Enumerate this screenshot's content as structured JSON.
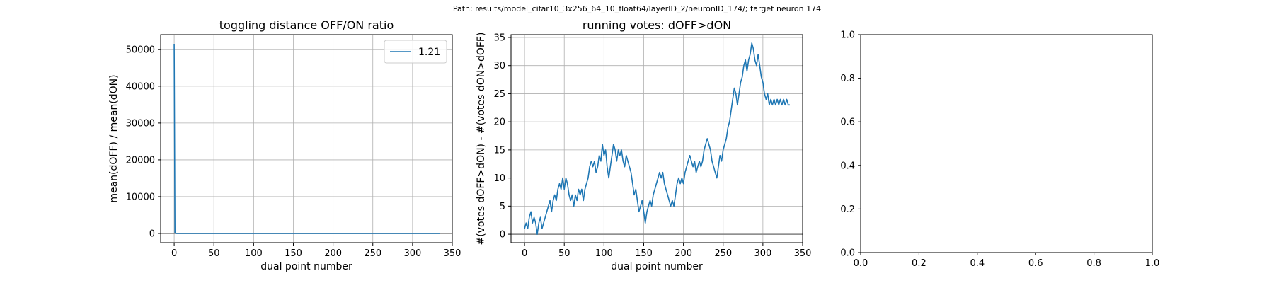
{
  "suptitle": "Path: results/model_cifar10_3x256_64_10_float64/layerID_2/neuronID_174/; target neuron 174",
  "colors": {
    "line": "#1f77b4",
    "zero_line": "#808080",
    "grid": "#b0b0b0"
  },
  "chart_data": [
    {
      "type": "line",
      "title": "toggling distance OFF/ON ratio",
      "xlabel": "dual point number",
      "ylabel": "mean(dOFF) / mean(dON)",
      "xlim": [
        -17,
        350
      ],
      "ylim": [
        -2500,
        54000
      ],
      "xticks": [
        0,
        50,
        100,
        150,
        200,
        250,
        300,
        350
      ],
      "yticks": [
        0,
        10000,
        20000,
        30000,
        40000,
        50000
      ],
      "grid": true,
      "zero_line": true,
      "legend": {
        "placement": "top-right",
        "entries": [
          "1.21"
        ]
      },
      "series": [
        {
          "name": "1.21",
          "x": [
            0,
            1,
            2,
            3,
            4,
            6,
            10,
            20,
            50,
            100,
            150,
            200,
            250,
            300,
            334
          ],
          "y": [
            51500,
            120,
            40,
            20,
            15,
            10,
            6,
            4,
            3,
            2,
            2,
            1.5,
            1.3,
            1.2,
            1.21
          ]
        }
      ]
    },
    {
      "type": "line",
      "title": "running votes: dOFF>dON",
      "xlabel": "dual point number",
      "ylabel": "#(votes dOFF>dON) - #(votes dON>dOFF)",
      "xlim": [
        -17,
        350
      ],
      "ylim": [
        -1.5,
        35.5
      ],
      "xticks": [
        0,
        50,
        100,
        150,
        200,
        250,
        300,
        350
      ],
      "yticks": [
        0,
        5,
        10,
        15,
        20,
        25,
        30,
        35
      ],
      "grid": true,
      "zero_line": true,
      "series": [
        {
          "x": [
            0,
            2,
            4,
            6,
            8,
            10,
            12,
            14,
            16,
            18,
            20,
            22,
            24,
            26,
            28,
            30,
            32,
            34,
            36,
            38,
            40,
            42,
            44,
            46,
            48,
            50,
            52,
            54,
            56,
            58,
            60,
            62,
            64,
            66,
            68,
            70,
            72,
            74,
            76,
            78,
            80,
            82,
            84,
            86,
            88,
            90,
            92,
            94,
            96,
            98,
            100,
            102,
            104,
            106,
            108,
            110,
            112,
            114,
            116,
            118,
            120,
            122,
            124,
            126,
            128,
            130,
            132,
            134,
            136,
            138,
            140,
            142,
            144,
            146,
            148,
            150,
            152,
            154,
            156,
            158,
            160,
            162,
            164,
            166,
            168,
            170,
            172,
            174,
            176,
            178,
            180,
            182,
            184,
            186,
            188,
            190,
            192,
            194,
            196,
            198,
            200,
            202,
            204,
            206,
            208,
            210,
            212,
            214,
            216,
            218,
            220,
            222,
            224,
            226,
            228,
            230,
            232,
            234,
            236,
            238,
            240,
            242,
            244,
            246,
            248,
            250,
            252,
            254,
            256,
            258,
            260,
            262,
            264,
            266,
            268,
            270,
            272,
            274,
            276,
            278,
            280,
            282,
            284,
            286,
            288,
            290,
            292,
            294,
            296,
            298,
            300,
            302,
            304,
            306,
            308,
            310,
            312,
            314,
            316,
            318,
            320,
            322,
            324,
            326,
            328,
            330,
            332,
            334
          ],
          "y": [
            1,
            2,
            1,
            3,
            4,
            2,
            3,
            2,
            0,
            2,
            3,
            1,
            2,
            3,
            4,
            5,
            6,
            4,
            6,
            7,
            6,
            8,
            9,
            8,
            10,
            8,
            10,
            9,
            7,
            6,
            7,
            5,
            7,
            6,
            8,
            7,
            8,
            6,
            8,
            9,
            10,
            12,
            13,
            12,
            13,
            11,
            12,
            14,
            13,
            16,
            14,
            15,
            12,
            10,
            12,
            14,
            16,
            15,
            13,
            15,
            14,
            15,
            13,
            12,
            14,
            13,
            12,
            11,
            9,
            7,
            8,
            6,
            4,
            5,
            6,
            4,
            2,
            4,
            5,
            6,
            5,
            7,
            8,
            9,
            10,
            11,
            10,
            11,
            9,
            8,
            7,
            6,
            5,
            6,
            5,
            7,
            9,
            10,
            9,
            10,
            9,
            11,
            12,
            13,
            14,
            13,
            12,
            13,
            11,
            12,
            13,
            12,
            13,
            15,
            16,
            17,
            16,
            15,
            13,
            12,
            11,
            10,
            12,
            14,
            13,
            15,
            16,
            17,
            19,
            20,
            22,
            24,
            26,
            25,
            23,
            25,
            27,
            28,
            30,
            31,
            29,
            31,
            32,
            34,
            33,
            31,
            30,
            32,
            30,
            28,
            27,
            25,
            24,
            25,
            23,
            24,
            23,
            24,
            23,
            24,
            23,
            24,
            23,
            24,
            23,
            24,
            23,
            23
          ]
        }
      ]
    },
    {
      "type": "line",
      "title": "",
      "xlabel": "",
      "ylabel": "",
      "xlim": [
        0,
        1
      ],
      "ylim": [
        0,
        1
      ],
      "xticks": [
        0.0,
        0.2,
        0.4,
        0.6,
        0.8,
        1.0
      ],
      "yticks": [
        0.0,
        0.2,
        0.4,
        0.6,
        0.8,
        1.0
      ],
      "grid": false,
      "zero_line": false,
      "series": []
    }
  ]
}
